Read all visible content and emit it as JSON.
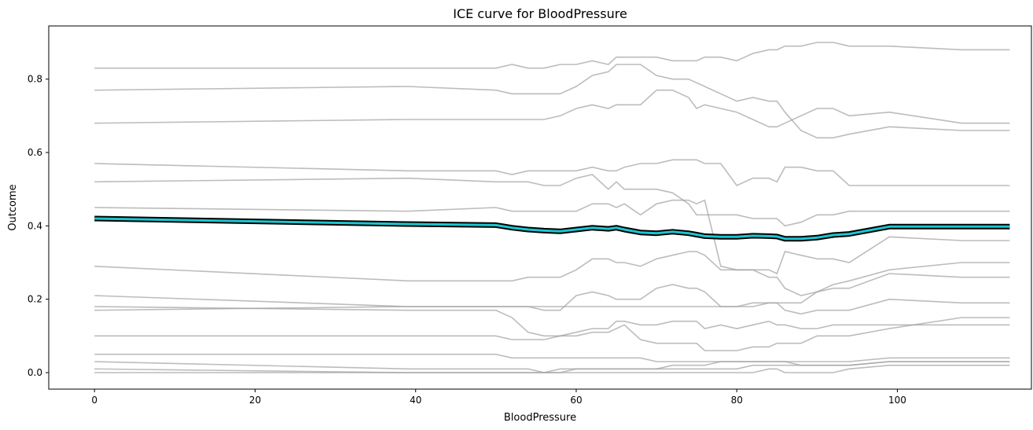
{
  "chart_data": {
    "type": "line",
    "title": "ICE curve for BloodPressure",
    "xlabel": "BloodPressure",
    "ylabel": "Outcome",
    "xlim": [
      -5.7,
      116.7
    ],
    "ylim": [
      -0.045,
      0.945
    ],
    "xticks": [
      0,
      20,
      40,
      60,
      80,
      100
    ],
    "yticks": [
      0.0,
      0.2,
      0.4,
      0.6,
      0.8
    ],
    "xtick_labels": [
      "0",
      "20",
      "40",
      "60",
      "80",
      "100"
    ],
    "ytick_labels": [
      "0.0",
      "0.2",
      "0.4",
      "0.6",
      "0.8"
    ],
    "grid": false,
    "colors": {
      "ice": "#a0a0a0",
      "pdp_outline": "#000000",
      "pdp_fill": "#1bc6d0"
    },
    "x": [
      0,
      39,
      50,
      52,
      54,
      56,
      58,
      60,
      62,
      64,
      65,
      66,
      68,
      70,
      72,
      74,
      75,
      76,
      78,
      80,
      82,
      84,
      85,
      86,
      88,
      90,
      92,
      94,
      99,
      108,
      114
    ],
    "series": [
      {
        "values": [
          0.83,
          0.83,
          0.83,
          0.84,
          0.83,
          0.83,
          0.84,
          0.84,
          0.85,
          0.84,
          0.86,
          0.86,
          0.86,
          0.86,
          0.85,
          0.85,
          0.85,
          0.86,
          0.86,
          0.85,
          0.87,
          0.88,
          0.88,
          0.89,
          0.89,
          0.9,
          0.9,
          0.89,
          0.89,
          0.88,
          0.88
        ]
      },
      {
        "values": [
          0.77,
          0.78,
          0.77,
          0.76,
          0.76,
          0.76,
          0.76,
          0.78,
          0.81,
          0.82,
          0.84,
          0.84,
          0.84,
          0.81,
          0.8,
          0.8,
          0.79,
          0.78,
          0.76,
          0.74,
          0.75,
          0.74,
          0.74,
          0.71,
          0.66,
          0.64,
          0.64,
          0.65,
          0.67,
          0.66,
          0.66
        ]
      },
      {
        "values": [
          0.68,
          0.69,
          0.69,
          0.69,
          0.69,
          0.69,
          0.7,
          0.72,
          0.73,
          0.72,
          0.73,
          0.73,
          0.73,
          0.77,
          0.77,
          0.75,
          0.72,
          0.73,
          0.72,
          0.71,
          0.69,
          0.67,
          0.67,
          0.68,
          0.7,
          0.72,
          0.72,
          0.7,
          0.71,
          0.68,
          0.68
        ]
      },
      {
        "values": [
          0.57,
          0.55,
          0.55,
          0.54,
          0.55,
          0.55,
          0.55,
          0.55,
          0.56,
          0.55,
          0.55,
          0.56,
          0.57,
          0.57,
          0.58,
          0.58,
          0.58,
          0.57,
          0.57,
          0.51,
          0.53,
          0.53,
          0.52,
          0.56,
          0.56,
          0.55,
          0.55,
          0.51,
          0.51,
          0.51,
          0.51
        ]
      },
      {
        "values": [
          0.52,
          0.53,
          0.52,
          0.52,
          0.52,
          0.51,
          0.51,
          0.53,
          0.54,
          0.5,
          0.52,
          0.5,
          0.5,
          0.5,
          0.49,
          0.46,
          0.43,
          0.43,
          0.43,
          0.43,
          0.42,
          0.42,
          0.42,
          0.4,
          0.41,
          0.43,
          0.43,
          0.44,
          0.44,
          0.44,
          0.44
        ]
      },
      {
        "values": [
          0.45,
          0.44,
          0.45,
          0.44,
          0.44,
          0.44,
          0.44,
          0.44,
          0.46,
          0.46,
          0.45,
          0.46,
          0.43,
          0.46,
          0.47,
          0.47,
          0.46,
          0.47,
          0.29,
          0.28,
          0.28,
          0.28,
          0.27,
          0.33,
          0.32,
          0.31,
          0.31,
          0.3,
          0.37,
          0.36,
          0.36
        ]
      },
      {
        "values": [
          0.29,
          0.25,
          0.25,
          0.25,
          0.26,
          0.26,
          0.26,
          0.28,
          0.31,
          0.31,
          0.3,
          0.3,
          0.29,
          0.31,
          0.32,
          0.33,
          0.33,
          0.32,
          0.28,
          0.28,
          0.28,
          0.26,
          0.26,
          0.23,
          0.21,
          0.22,
          0.24,
          0.25,
          0.28,
          0.3,
          0.3
        ]
      },
      {
        "values": [
          0.21,
          0.18,
          0.18,
          0.18,
          0.18,
          0.17,
          0.17,
          0.21,
          0.22,
          0.21,
          0.2,
          0.2,
          0.2,
          0.23,
          0.24,
          0.23,
          0.23,
          0.22,
          0.18,
          0.18,
          0.19,
          0.19,
          0.19,
          0.17,
          0.16,
          0.17,
          0.17,
          0.17,
          0.2,
          0.19,
          0.19
        ]
      },
      {
        "values": [
          0.17,
          0.18,
          0.18,
          0.18,
          0.18,
          0.18,
          0.18,
          0.18,
          0.18,
          0.18,
          0.18,
          0.18,
          0.18,
          0.18,
          0.18,
          0.18,
          0.18,
          0.18,
          0.18,
          0.18,
          0.18,
          0.19,
          0.19,
          0.19,
          0.19,
          0.22,
          0.23,
          0.23,
          0.27,
          0.26,
          0.26
        ]
      },
      {
        "values": [
          0.1,
          0.1,
          0.1,
          0.09,
          0.09,
          0.09,
          0.1,
          0.11,
          0.12,
          0.12,
          0.14,
          0.14,
          0.13,
          0.13,
          0.14,
          0.14,
          0.14,
          0.12,
          0.13,
          0.12,
          0.13,
          0.14,
          0.13,
          0.13,
          0.12,
          0.12,
          0.13,
          0.13,
          0.13,
          0.13,
          0.13
        ]
      },
      {
        "values": [
          0.18,
          0.17,
          0.17,
          0.15,
          0.11,
          0.1,
          0.1,
          0.1,
          0.11,
          0.11,
          0.12,
          0.13,
          0.09,
          0.08,
          0.08,
          0.08,
          0.08,
          0.06,
          0.06,
          0.06,
          0.07,
          0.07,
          0.08,
          0.08,
          0.08,
          0.1,
          0.1,
          0.1,
          0.12,
          0.15,
          0.15
        ]
      },
      {
        "values": [
          0.05,
          0.05,
          0.05,
          0.04,
          0.04,
          0.04,
          0.04,
          0.04,
          0.04,
          0.04,
          0.04,
          0.04,
          0.04,
          0.03,
          0.03,
          0.03,
          0.03,
          0.03,
          0.03,
          0.03,
          0.03,
          0.03,
          0.03,
          0.03,
          0.03,
          0.03,
          0.03,
          0.03,
          0.04,
          0.04,
          0.04
        ]
      },
      {
        "values": [
          0.03,
          0.01,
          0.01,
          0.01,
          0.01,
          0.0,
          0.0,
          0.01,
          0.01,
          0.01,
          0.01,
          0.01,
          0.01,
          0.01,
          0.02,
          0.02,
          0.02,
          0.02,
          0.03,
          0.03,
          0.03,
          0.03,
          0.03,
          0.03,
          0.02,
          0.02,
          0.02,
          0.02,
          0.03,
          0.03,
          0.03
        ]
      },
      {
        "values": [
          0.01,
          0.0,
          0.0,
          0.0,
          0.0,
          0.0,
          0.01,
          0.01,
          0.01,
          0.01,
          0.01,
          0.01,
          0.01,
          0.01,
          0.01,
          0.01,
          0.01,
          0.01,
          0.01,
          0.01,
          0.02,
          0.02,
          0.02,
          0.02,
          0.02,
          0.02,
          0.02,
          0.02,
          0.03,
          0.03,
          0.03
        ]
      },
      {
        "values": [
          0.0,
          0.0,
          0.0,
          0.0,
          0.0,
          0.0,
          0.0,
          0.0,
          0.0,
          0.0,
          0.0,
          0.0,
          0.0,
          0.0,
          0.0,
          0.0,
          0.0,
          0.0,
          0.0,
          0.0,
          0.0,
          0.01,
          0.01,
          0.0,
          0.0,
          0.0,
          0.0,
          0.01,
          0.02,
          0.02,
          0.02
        ]
      }
    ],
    "average": {
      "values": [
        0.42,
        0.405,
        0.402,
        0.395,
        0.39,
        0.387,
        0.385,
        0.39,
        0.395,
        0.392,
        0.395,
        0.39,
        0.382,
        0.38,
        0.384,
        0.38,
        0.376,
        0.372,
        0.37,
        0.37,
        0.373,
        0.372,
        0.371,
        0.365,
        0.365,
        0.368,
        0.375,
        0.378,
        0.398,
        0.398,
        0.398
      ]
    }
  }
}
